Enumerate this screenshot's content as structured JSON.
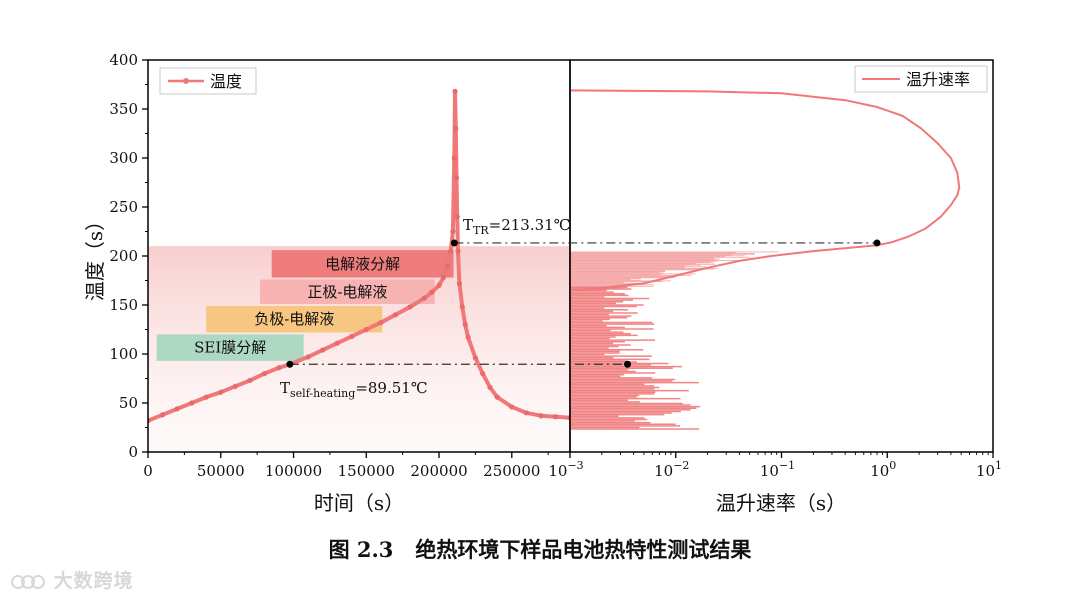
{
  "chart_data": [
    {
      "type": "line",
      "panel": "left",
      "xlabel": "时间（s）",
      "ylabel": "温度（s）",
      "xlim": [
        0,
        290000
      ],
      "ylim": [
        0,
        400
      ],
      "x_ticks": [
        "0",
        "50000",
        "100000",
        "150000",
        "200000",
        "250000"
      ],
      "x_tick_values": [
        0,
        50000,
        100000,
        150000,
        200000,
        250000
      ],
      "y_ticks": [
        "0",
        "50",
        "100",
        "150",
        "200",
        "250",
        "300",
        "350",
        "400"
      ],
      "y_tick_values": [
        0,
        50,
        100,
        150,
        200,
        250,
        300,
        350,
        400
      ],
      "legend": {
        "label": "温度",
        "placement": "top-left"
      },
      "series": [
        {
          "name": "温度",
          "x": [
            0,
            10000,
            20000,
            30000,
            40000,
            50000,
            60000,
            70000,
            80000,
            90000,
            97500,
            110000,
            120000,
            130000,
            140000,
            150000,
            160000,
            170000,
            180000,
            190000,
            195000,
            200000,
            203000,
            206000,
            208000,
            209500,
            210500,
            211000,
            211500,
            212000,
            212500,
            213000,
            214000,
            216000,
            218000,
            220000,
            225000,
            230000,
            235000,
            240000,
            250000,
            260000,
            270000,
            280000,
            290000
          ],
          "y": [
            32,
            38,
            44,
            50,
            56,
            61,
            67,
            73,
            80,
            86,
            89.51,
            97,
            104,
            111,
            118,
            125,
            132,
            140,
            148,
            157,
            163,
            170,
            178,
            190,
            205,
            225,
            300,
            368,
            330,
            280,
            240,
            205,
            172,
            148,
            130,
            117,
            96,
            80,
            66,
            56,
            46,
            40,
            37,
            36,
            35
          ]
        }
      ],
      "bands": [
        {
          "label": "电解液分解",
          "x_start": 85000,
          "x_end": 210000,
          "y_start": 178,
          "y_end": 206,
          "color": "#ee7777"
        },
        {
          "label": "正极-电解液",
          "x_start": 77000,
          "x_end": 197000,
          "y_start": 151,
          "y_end": 176,
          "color": "#f8b0b0"
        },
        {
          "label": "负极-电解液",
          "x_start": 40000,
          "x_end": 161000,
          "y_start": 122,
          "y_end": 149,
          "color": "#f7c57c"
        },
        {
          "label": "SEI膜分解",
          "x_start": 6000,
          "x_end": 107000,
          "y_start": 93,
          "y_end": 120,
          "color": "#a9d8c2"
        }
      ],
      "shaded_region": {
        "y_start": 0,
        "y_end": 210,
        "x_start": 0,
        "x_end": 290000,
        "color": "#f6b3b3"
      },
      "annotations": [
        {
          "label_main": "T",
          "label_sub": "self-heating",
          "label_rest": "=89.51℃",
          "x": 97500,
          "y": 89.51
        },
        {
          "label_main": "T",
          "label_sub": "TR",
          "label_rest": "=213.31℃",
          "x": 210500,
          "y": 213.31
        }
      ]
    },
    {
      "type": "line",
      "panel": "right",
      "xlabel": "温升速率（s）",
      "xscale": "log",
      "xlim": [
        0.001,
        10
      ],
      "ylim": [
        0,
        400
      ],
      "x_ticks": [
        {
          "base": "10",
          "exp": "−3",
          "value": 0.001
        },
        {
          "base": "10",
          "exp": "−2",
          "value": 0.01
        },
        {
          "base": "10",
          "exp": "−1",
          "value": 0.1
        },
        {
          "base": "10",
          "exp": "0",
          "value": 1
        },
        {
          "base": "10",
          "exp": "1",
          "value": 10
        }
      ],
      "legend": {
        "label": "温升速率",
        "placement": "top-right"
      },
      "series": [
        {
          "name": "温升速率",
          "rate": [
            0.0012,
            0.005,
            0.01,
            0.02,
            0.04,
            0.08,
            0.2,
            0.5,
            0.8,
            1.1,
            1.6,
            2.3,
            3.2,
            4.0,
            4.6,
            4.8,
            4.6,
            4.0,
            3.0,
            2.1,
            1.4,
            0.8,
            0.4,
            0.1,
            0.02,
            0.001
          ],
          "temperature": [
            165,
            172,
            180,
            188,
            195,
            200,
            205,
            209,
            211,
            214,
            220,
            228,
            240,
            252,
            262,
            270,
            285,
            300,
            315,
            330,
            343,
            352,
            359,
            366,
            368,
            369
          ]
        }
      ],
      "noise_regions": [
        {
          "y_start": 92,
          "y_end": 168,
          "rate_min": 0.001,
          "rate_max": 0.0065
        },
        {
          "y_start": 22,
          "y_end": 92,
          "rate_min": 0.001,
          "rate_max": 0.018
        }
      ],
      "markers": [
        {
          "rate": 0.8,
          "temperature": 213.31
        },
        {
          "rate": 0.0035,
          "temperature": 89.51
        }
      ]
    }
  ],
  "caption": {
    "number": "图 2.3",
    "text": "绝热环境下样品电池热特性测试结果"
  },
  "watermark": "大数跨境",
  "colors": {
    "series": "#f07878",
    "series_dark": "#e86a6a",
    "axis": "#000000",
    "marker": "#000000"
  }
}
